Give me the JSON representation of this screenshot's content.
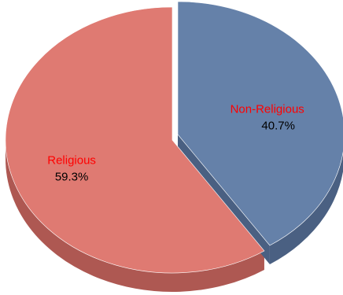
{
  "chart_data": {
    "type": "pie",
    "style": "3d-exploded",
    "title": "",
    "slices": [
      {
        "label": "Religious",
        "value": 59.3,
        "percent_label": "59.3%",
        "color": "#df7a72",
        "side_color": "#ae5852"
      },
      {
        "label": "Non-Religious",
        "value": 40.7,
        "percent_label": "40.7%",
        "color": "#6581a9",
        "side_color": "#4a6082"
      }
    ],
    "label_color": "#ff0000",
    "legend": "none"
  }
}
